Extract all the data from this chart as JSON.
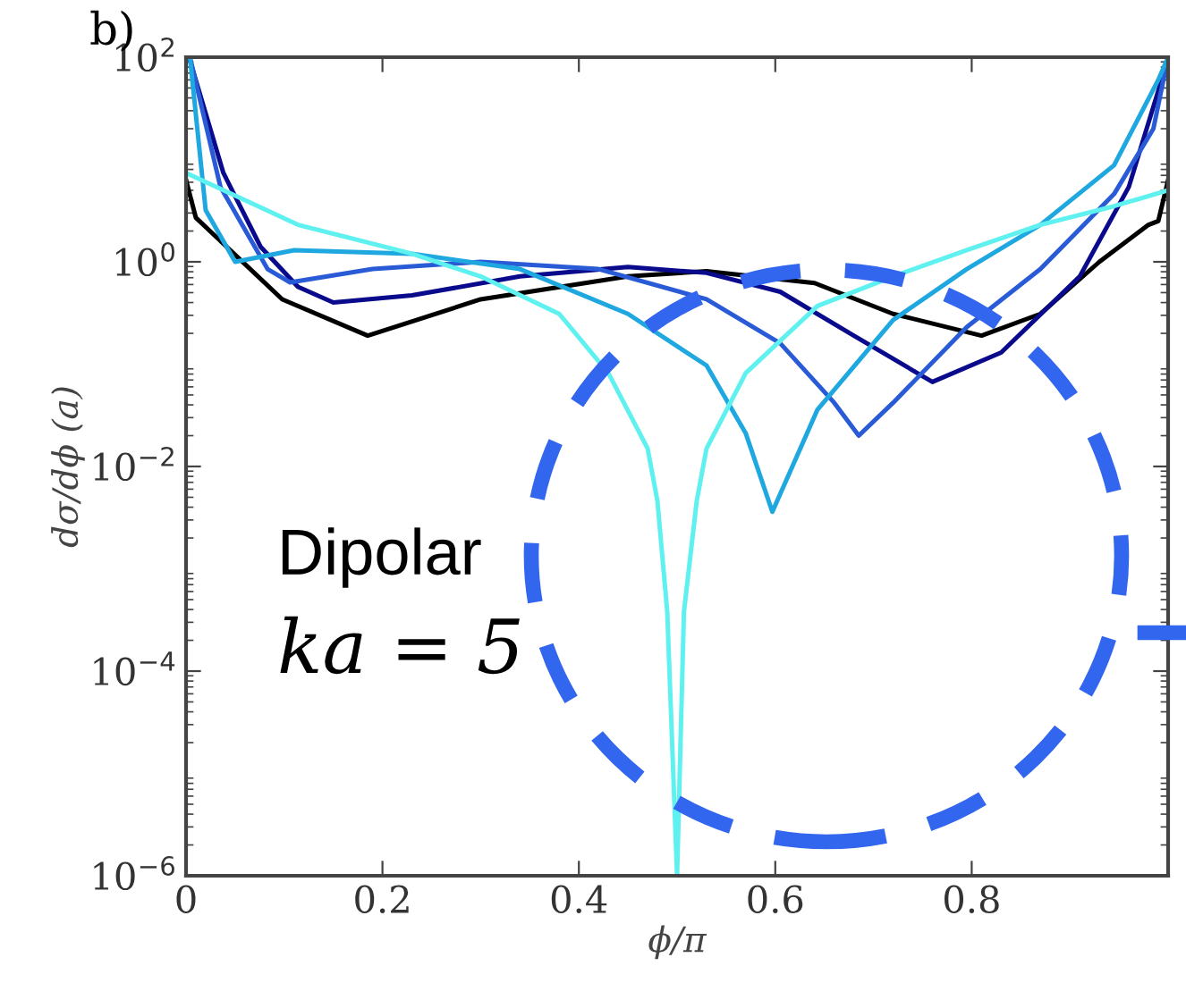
{
  "chart_data": {
    "type": "line",
    "xlabel": "ϕ/π",
    "ylabel": "dσ/dϕ (a)",
    "log": "y",
    "grid": false,
    "line_style": "solid",
    "marker": "none",
    "xlim": [
      0,
      1
    ],
    "xticks": [
      0,
      0.2,
      0.4,
      0.6,
      0.8,
      {
        "value": 1,
        "label": null
      }
    ],
    "ylim": [
      1e-06,
      100
    ],
    "yticks": [
      {
        "value": 1e-06,
        "label": "10$^{−6}$"
      },
      {
        "value": 0.0001,
        "label": "10$^{−4}$"
      },
      {
        "value": 0.01,
        "label": "10$^{−2}$"
      },
      {
        "value": 1,
        "label": "10$^{0}$"
      },
      {
        "value": 100,
        "label": "10$^{2}$"
      }
    ],
    "annotations": [
      "b)",
      "Dipolar",
      "ka = 5"
    ],
    "series": [
      {
        "color": "#000000",
        "x": [
          0,
          0.01,
          0.098,
          0.185,
          0.3,
          0.45,
          0.53,
          0.64,
          0.72,
          0.81,
          0.87,
          0.93,
          0.98,
          0.99,
          1.0
        ],
        "values": [
          6.3,
          2.7,
          0.43,
          0.19,
          0.43,
          0.72,
          0.81,
          0.62,
          0.31,
          0.19,
          0.31,
          1.0,
          2.3,
          2.5,
          6.3
        ]
      },
      {
        "color": "#0a0a8c",
        "x": [
          0.003,
          0.038,
          0.076,
          0.114,
          0.15,
          0.23,
          0.34,
          0.45,
          0.53,
          0.605,
          0.68,
          0.76,
          0.83,
          0.91,
          0.96,
          0.99,
          1.0
        ],
        "values": [
          100,
          7.4,
          1.4,
          0.57,
          0.4,
          0.47,
          0.72,
          0.89,
          0.78,
          0.51,
          0.19,
          0.067,
          0.13,
          0.72,
          5.4,
          47,
          100
        ]
      },
      {
        "color": "#2a5bd7",
        "x": [
          0.004,
          0.035,
          0.083,
          0.106,
          0.19,
          0.3,
          0.42,
          0.53,
          0.605,
          0.66,
          0.685,
          0.72,
          0.795,
          0.87,
          0.945,
          0.985,
          1.0
        ],
        "values": [
          100,
          5.4,
          0.85,
          0.63,
          0.85,
          1.0,
          0.85,
          0.43,
          0.16,
          0.042,
          0.02,
          0.042,
          0.23,
          0.85,
          4.6,
          20,
          100
        ]
      },
      {
        "color": "#1fa8e0",
        "x": [
          0.004,
          0.02,
          0.05,
          0.11,
          0.23,
          0.34,
          0.45,
          0.53,
          0.57,
          0.597,
          0.643,
          0.72,
          0.795,
          0.87,
          0.945,
          0.99,
          1.0
        ],
        "values": [
          100,
          3.2,
          1.0,
          1.3,
          1.2,
          0.85,
          0.31,
          0.097,
          0.021,
          0.0036,
          0.036,
          0.27,
          0.85,
          2.3,
          8.8,
          60,
          100
        ]
      },
      {
        "color": "#5ff0f0",
        "x": [
          0,
          0.114,
          0.23,
          0.3,
          0.38,
          0.43,
          0.47,
          0.48,
          0.49,
          0.5,
          0.507,
          0.52,
          0.53,
          0.57,
          0.643,
          0.72,
          0.795,
          0.87,
          0.945,
          1.0
        ],
        "values": [
          7.4,
          2.3,
          1.2,
          0.72,
          0.31,
          0.082,
          0.015,
          0.0046,
          0.00038,
          1e-06,
          0.00038,
          0.0046,
          0.015,
          0.082,
          0.37,
          0.72,
          1.3,
          2.3,
          3.5,
          5
        ]
      }
    ]
  }
}
